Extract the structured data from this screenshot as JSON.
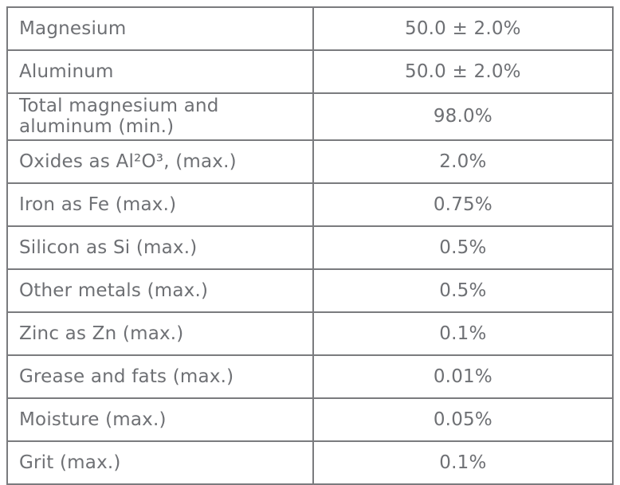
{
  "table": {
    "name": "material-composition-specification",
    "columns": [
      "property",
      "value"
    ],
    "rows": [
      {
        "label": "Magnesium",
        "value": "50.0 ± 2.0%"
      },
      {
        "label": "Aluminum",
        "value": "50.0 ± 2.0%"
      },
      {
        "label": "Total magnesium and aluminum (min.)",
        "value": "98.0%"
      },
      {
        "label": "Oxides as Al²O³, (max.)",
        "value": "2.0%"
      },
      {
        "label": "Iron as Fe (max.)",
        "value": "0.75%"
      },
      {
        "label": "Silicon as Si (max.)",
        "value": "0.5%"
      },
      {
        "label": "Other metals (max.)",
        "value": "0.5%"
      },
      {
        "label": "Zinc as Zn (max.)",
        "value": "0.1%"
      },
      {
        "label": "Grease and fats (max.)",
        "value": "0.01%"
      },
      {
        "label": "Moisture (max.)",
        "value": "0.05%"
      },
      {
        "label": "Grit (max.)",
        "value": "0.1%"
      }
    ],
    "colors": {
      "border": "#7a7b7e",
      "text": "#6e7074",
      "background": "#ffffff"
    }
  }
}
